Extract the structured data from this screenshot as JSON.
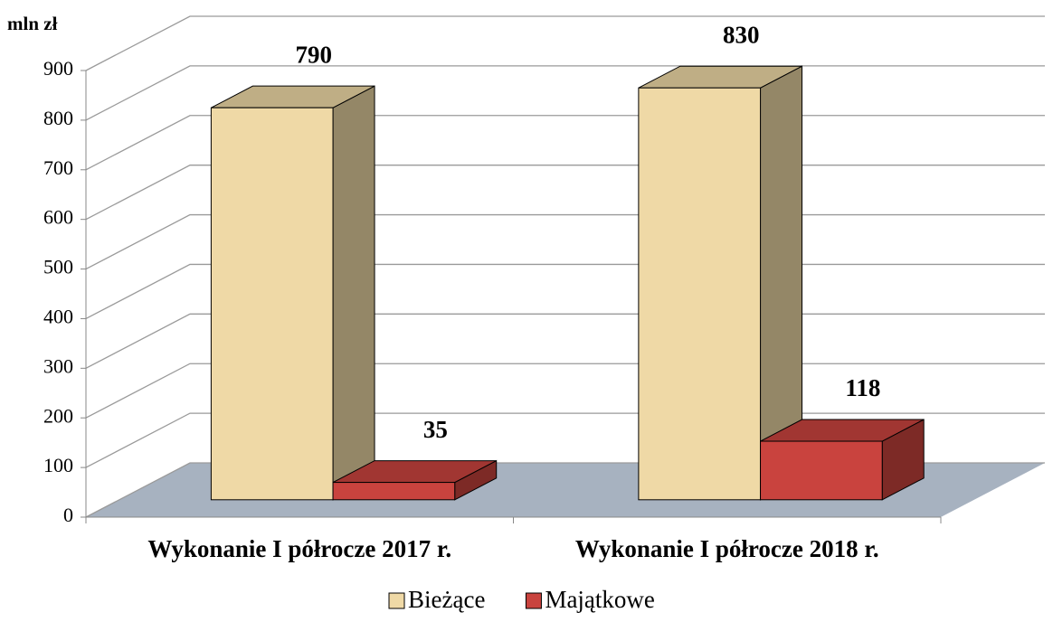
{
  "chart_data": {
    "type": "bar3d",
    "ylabel": "mln zł",
    "categories": [
      "Wykonanie I półrocze 2017 r.",
      "Wykonanie I półrocze 2018 r."
    ],
    "series": [
      {
        "name": "Bieżące",
        "color": "#efd9a6",
        "values": [
          790,
          830
        ]
      },
      {
        "name": "Majątkowe",
        "color": "#c9433e",
        "values": [
          35,
          118
        ]
      }
    ],
    "ylim": [
      0,
      900
    ],
    "yticks": [
      0,
      100,
      200,
      300,
      400,
      500,
      600,
      700,
      800,
      900
    ],
    "grid": true,
    "legend": "bottom"
  }
}
